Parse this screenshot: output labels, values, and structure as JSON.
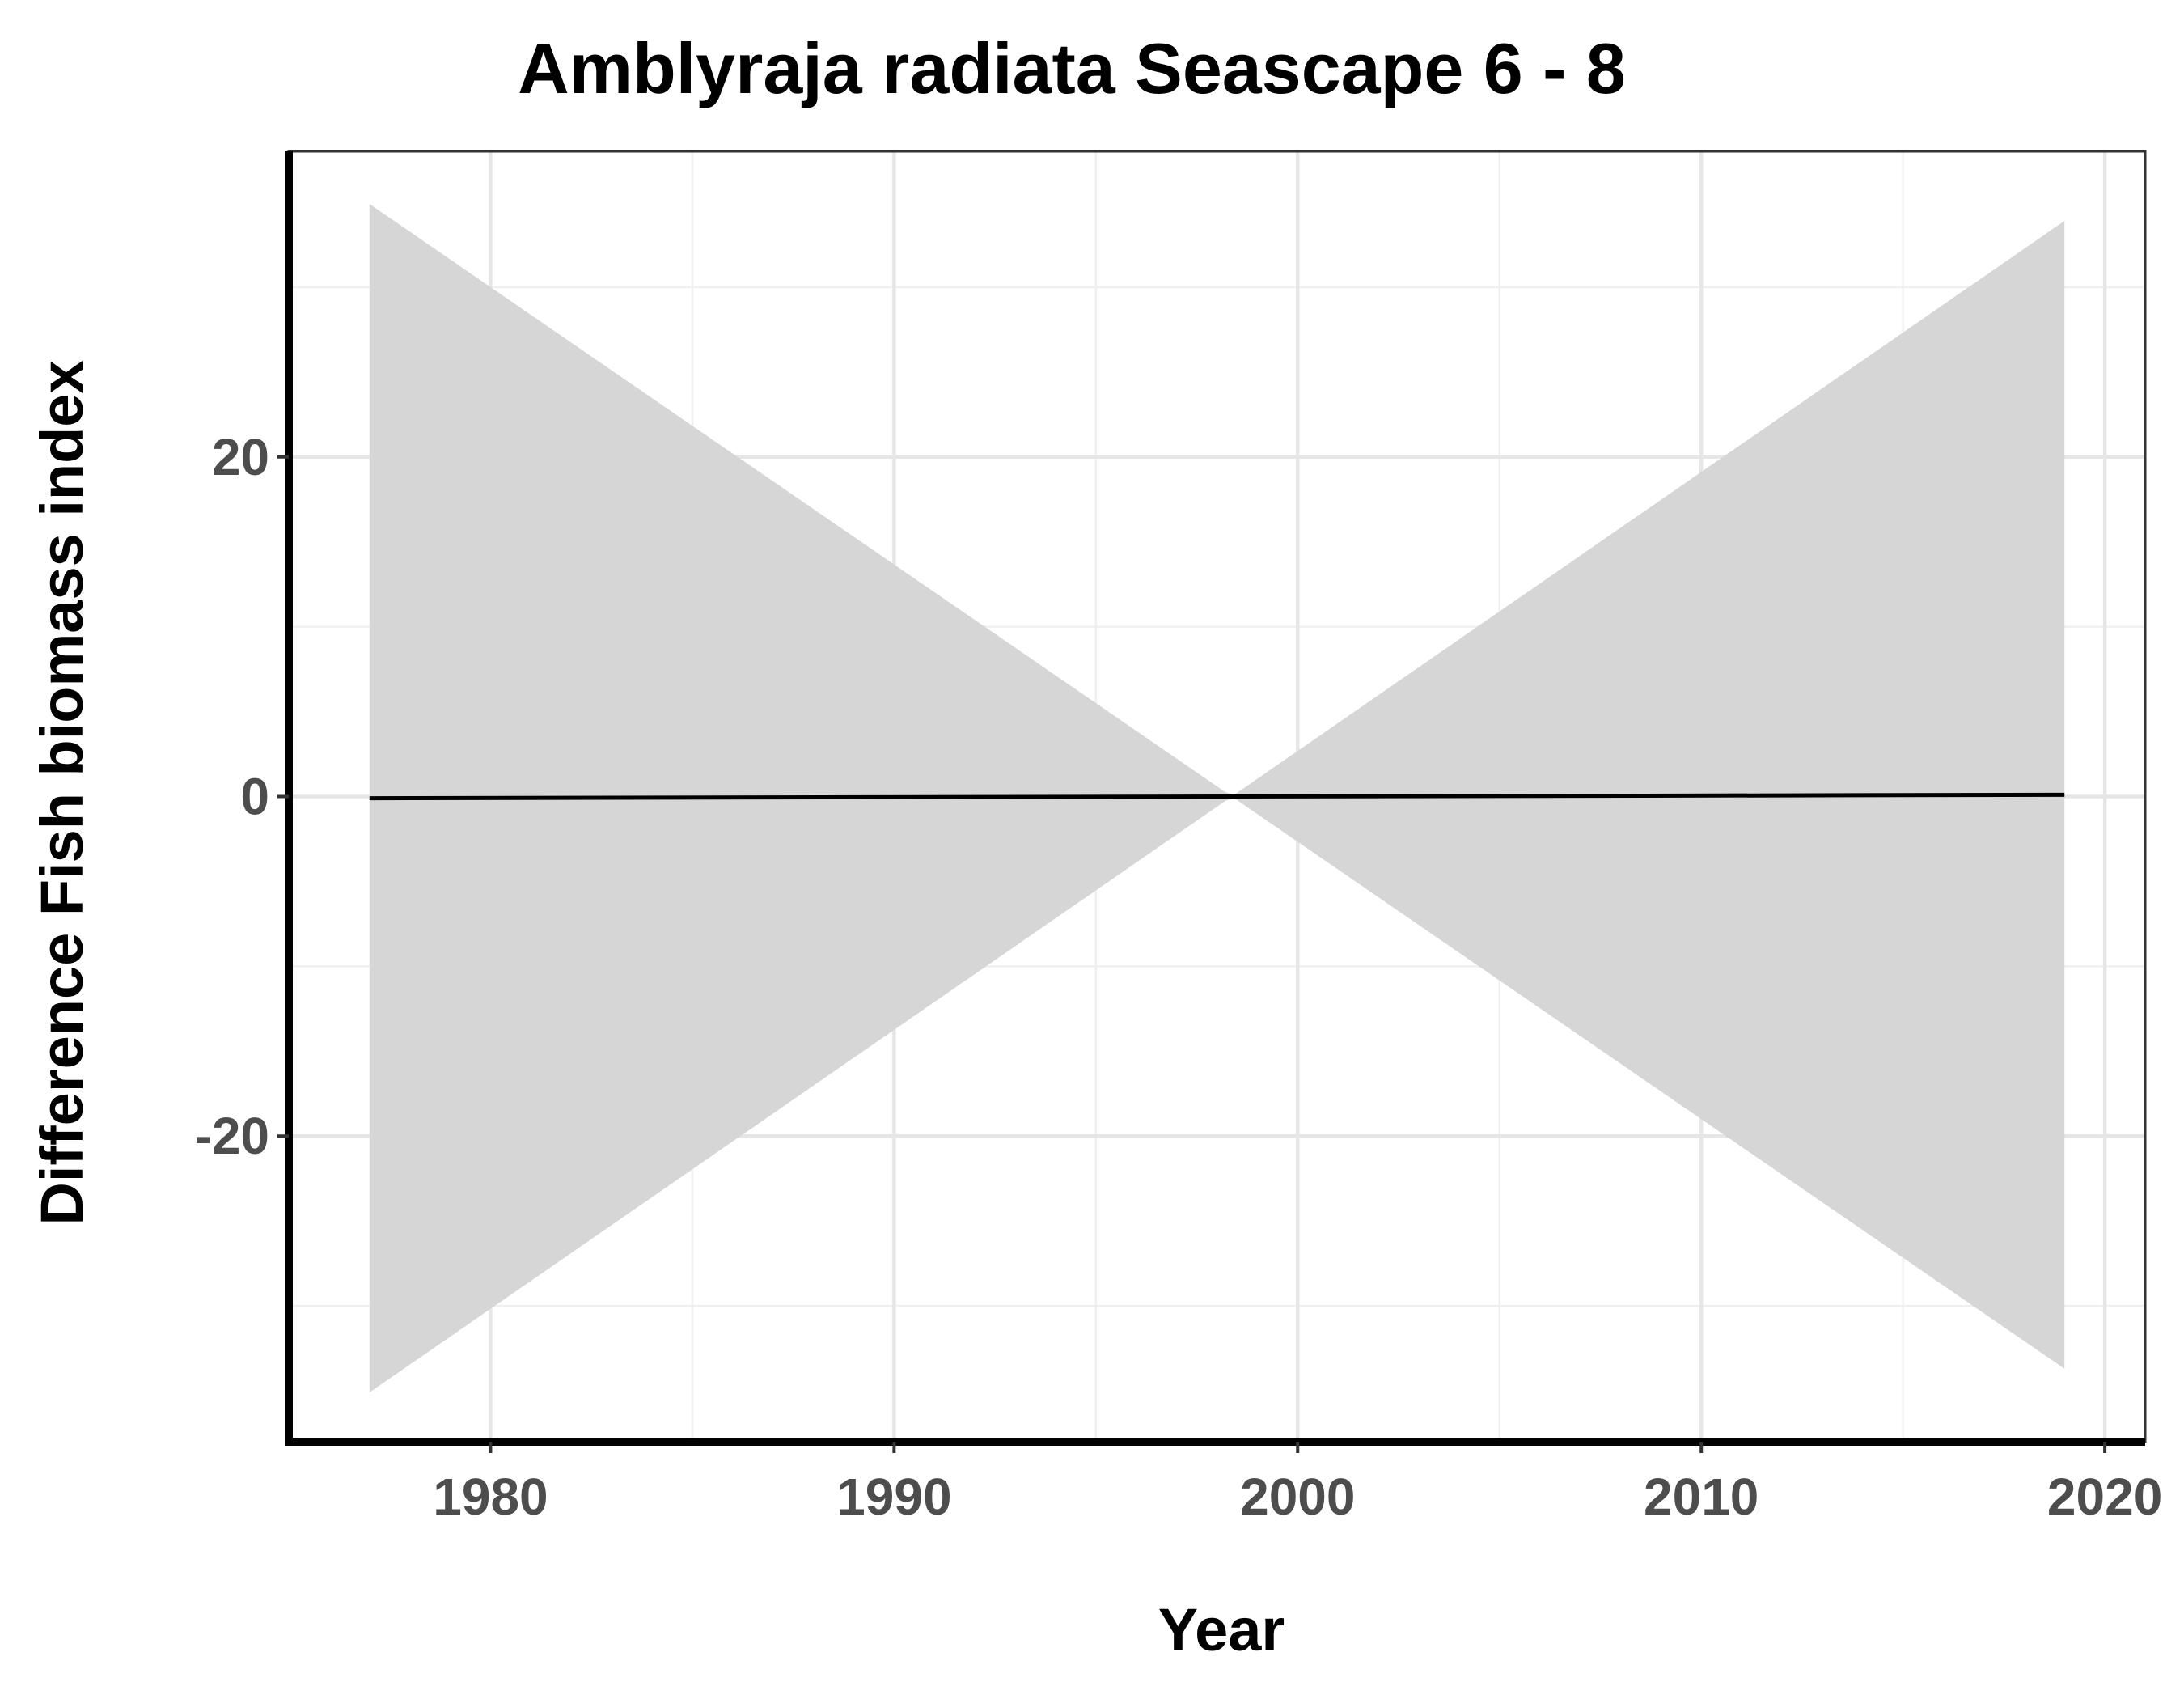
{
  "chart_data": {
    "type": "line",
    "title": "Amblyraja radiata Seascape 6 - 8",
    "xlabel": "Year",
    "ylabel": "Difference Fish biomass index",
    "xlim": [
      1975,
      2021
    ],
    "ylim": [
      -38,
      38
    ],
    "x_ticks": [
      1980,
      1990,
      2000,
      2010,
      2020
    ],
    "x_tick_labels": [
      "1980",
      "1990",
      "2000",
      "2010",
      "2020"
    ],
    "y_ticks": [
      -20,
      0,
      20
    ],
    "y_tick_labels": [
      "-20",
      "0",
      "20"
    ],
    "grid": true,
    "legend": "none",
    "series": [
      {
        "x": [
          1977,
          2019
        ],
        "y": [
          -0.1,
          0.1
        ],
        "ci_lower": [
          -35.0,
          -33.7
        ],
        "ci_upper": [
          34.9,
          33.9
        ],
        "line_color": "#000000",
        "band_color": "#d6d6d6"
      }
    ]
  }
}
